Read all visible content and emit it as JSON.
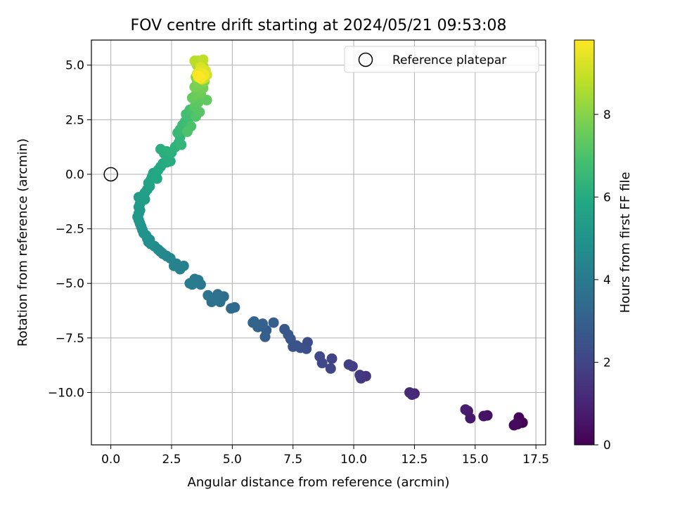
{
  "chart_data": {
    "type": "scatter",
    "title": "FOV centre drift starting at 2024/05/21 09:53:08",
    "xlabel": "Angular distance from reference (arcmin)",
    "ylabel": "Rotation from reference (arcmin)",
    "xlim": [
      -0.8,
      17.9
    ],
    "ylim": [
      -12.4,
      6.15
    ],
    "xticks": [
      0.0,
      2.5,
      5.0,
      7.5,
      10.0,
      12.5,
      15.0,
      17.5
    ],
    "xtick_labels": [
      "0.0",
      "2.5",
      "5.0",
      "7.5",
      "10.0",
      "12.5",
      "15.0",
      "17.5"
    ],
    "yticks": [
      5.0,
      2.5,
      0.0,
      -2.5,
      -5.0,
      -7.5,
      -10.0
    ],
    "ytick_labels": [
      "5.0",
      "2.5",
      "0.0",
      "−2.5",
      "−5.0",
      "−7.5",
      "−10.0"
    ],
    "grid": true,
    "legend": {
      "placement": "upper-right",
      "entries": [
        "Reference platepar"
      ]
    },
    "reference_point": {
      "x": 0.0,
      "y": 0.0
    },
    "colorbar": {
      "label": "Hours from first FF file",
      "range": [
        0,
        9.8
      ],
      "ticks": [
        0,
        2,
        4,
        6,
        8
      ],
      "tick_labels": [
        "0",
        "2",
        "4",
        "6",
        "8"
      ],
      "colormap": "viridis"
    },
    "points": [
      [
        16.95,
        -11.38,
        0.0
      ],
      [
        16.8,
        -11.15,
        0.08
      ],
      [
        16.75,
        -11.45,
        0.15
      ],
      [
        16.6,
        -11.5,
        0.22
      ],
      [
        16.7,
        -11.42,
        0.3
      ],
      [
        15.5,
        -11.05,
        0.45
      ],
      [
        15.35,
        -11.08,
        0.52
      ],
      [
        14.8,
        -11.18,
        0.65
      ],
      [
        14.7,
        -10.85,
        0.72
      ],
      [
        14.6,
        -10.78,
        0.8
      ],
      [
        12.5,
        -10.05,
        1.05
      ],
      [
        12.3,
        -10.0,
        1.12
      ],
      [
        12.4,
        -10.1,
        1.2
      ],
      [
        10.5,
        -9.25,
        1.45
      ],
      [
        10.3,
        -9.35,
        1.52
      ],
      [
        10.25,
        -9.2,
        1.6
      ],
      [
        9.95,
        -8.8,
        1.72
      ],
      [
        9.8,
        -8.72,
        1.8
      ],
      [
        9.1,
        -8.45,
        1.92
      ],
      [
        9.05,
        -8.9,
        2.0
      ],
      [
        8.7,
        -8.65,
        2.1
      ],
      [
        8.6,
        -8.35,
        2.15
      ],
      [
        8.1,
        -7.7,
        2.3
      ],
      [
        8.05,
        -8.0,
        2.35
      ],
      [
        7.8,
        -7.95,
        2.42
      ],
      [
        7.65,
        -7.85,
        2.48
      ],
      [
        7.5,
        -7.9,
        2.55
      ],
      [
        7.4,
        -7.55,
        2.6
      ],
      [
        7.3,
        -7.35,
        2.65
      ],
      [
        7.15,
        -7.1,
        2.7
      ],
      [
        6.7,
        -6.8,
        2.85
      ],
      [
        6.4,
        -7.15,
        2.92
      ],
      [
        6.35,
        -7.45,
        2.96
      ],
      [
        6.25,
        -6.85,
        3.02
      ],
      [
        6.05,
        -7.0,
        3.08
      ],
      [
        5.9,
        -6.75,
        3.14
      ],
      [
        5.85,
        -6.8,
        3.18
      ],
      [
        5.1,
        -6.1,
        3.35
      ],
      [
        4.95,
        -6.15,
        3.4
      ],
      [
        4.65,
        -5.6,
        3.5
      ],
      [
        4.5,
        -5.85,
        3.56
      ],
      [
        4.4,
        -5.5,
        3.6
      ],
      [
        4.3,
        -5.75,
        3.65
      ],
      [
        4.15,
        -5.85,
        3.7
      ],
      [
        4.0,
        -5.55,
        3.75
      ],
      [
        3.7,
        -5.05,
        3.88
      ],
      [
        3.6,
        -4.85,
        3.93
      ],
      [
        3.45,
        -4.8,
        3.98
      ],
      [
        3.35,
        -5.05,
        4.02
      ],
      [
        3.25,
        -5.0,
        4.06
      ],
      [
        3.0,
        -4.2,
        4.18
      ],
      [
        2.85,
        -4.35,
        4.24
      ],
      [
        2.7,
        -4.1,
        4.3
      ],
      [
        2.6,
        -4.2,
        4.34
      ],
      [
        2.45,
        -3.85,
        4.42
      ],
      [
        2.3,
        -3.75,
        4.48
      ],
      [
        2.15,
        -3.65,
        4.54
      ],
      [
        2.05,
        -3.55,
        4.58
      ],
      [
        1.95,
        -3.45,
        4.63
      ],
      [
        1.8,
        -3.3,
        4.68
      ],
      [
        1.65,
        -3.2,
        4.73
      ],
      [
        1.55,
        -3.1,
        4.78
      ],
      [
        1.6,
        -3.0,
        4.82
      ],
      [
        1.5,
        -2.95,
        4.86
      ],
      [
        1.45,
        -2.8,
        4.9
      ],
      [
        1.35,
        -2.7,
        4.94
      ],
      [
        1.3,
        -2.55,
        4.98
      ],
      [
        1.25,
        -2.4,
        5.02
      ],
      [
        1.2,
        -2.25,
        5.06
      ],
      [
        1.15,
        -2.1,
        5.1
      ],
      [
        1.1,
        -1.95,
        5.14
      ],
      [
        1.15,
        -1.8,
        5.18
      ],
      [
        1.2,
        -1.65,
        5.22
      ],
      [
        1.15,
        -1.5,
        5.26
      ],
      [
        1.2,
        -1.35,
        5.3
      ],
      [
        1.25,
        -1.2,
        5.34
      ],
      [
        1.15,
        -1.05,
        5.38
      ],
      [
        1.3,
        -1.0,
        5.42
      ],
      [
        1.4,
        -1.15,
        5.46
      ],
      [
        1.4,
        -0.85,
        5.5
      ],
      [
        1.5,
        -0.7,
        5.54
      ],
      [
        1.6,
        -0.55,
        5.58
      ],
      [
        1.55,
        -0.4,
        5.62
      ],
      [
        1.65,
        -0.25,
        5.66
      ],
      [
        1.7,
        -0.1,
        5.7
      ],
      [
        1.75,
        0.05,
        5.74
      ],
      [
        1.85,
        -0.05,
        5.78
      ],
      [
        1.9,
        -0.2,
        5.82
      ],
      [
        1.95,
        0.2,
        5.86
      ],
      [
        2.05,
        0.35,
        5.9
      ],
      [
        2.15,
        0.5,
        5.94
      ],
      [
        2.3,
        0.55,
        5.98
      ],
      [
        2.45,
        0.6,
        6.02
      ],
      [
        2.35,
        0.7,
        6.06
      ],
      [
        2.2,
        0.95,
        6.1
      ],
      [
        2.05,
        1.15,
        6.14
      ],
      [
        2.3,
        1.05,
        6.18
      ],
      [
        2.5,
        1.0,
        6.22
      ],
      [
        2.65,
        1.25,
        6.26
      ],
      [
        2.8,
        1.45,
        6.3
      ],
      [
        2.85,
        1.7,
        6.38
      ],
      [
        2.9,
        1.35,
        6.44
      ],
      [
        2.75,
        1.9,
        6.5
      ],
      [
        2.85,
        2.05,
        6.56
      ],
      [
        2.95,
        2.25,
        6.62
      ],
      [
        3.05,
        2.4,
        6.68
      ],
      [
        3.2,
        2.55,
        6.74
      ],
      [
        3.1,
        2.75,
        6.8
      ],
      [
        3.25,
        2.95,
        6.86
      ],
      [
        3.4,
        2.9,
        6.92
      ],
      [
        3.3,
        2.2,
        6.98
      ],
      [
        3.15,
        1.95,
        7.04
      ],
      [
        3.5,
        2.65,
        7.1
      ],
      [
        3.65,
        2.85,
        7.16
      ],
      [
        3.45,
        3.1,
        7.22
      ],
      [
        3.6,
        3.3,
        7.28
      ],
      [
        3.75,
        3.45,
        7.34
      ],
      [
        3.95,
        3.4,
        7.4
      ],
      [
        3.35,
        3.5,
        7.46
      ],
      [
        3.5,
        3.65,
        7.52
      ],
      [
        3.7,
        3.7,
        7.58
      ],
      [
        3.6,
        3.85,
        7.64
      ],
      [
        3.8,
        3.95,
        7.7
      ],
      [
        3.45,
        4.0,
        7.76
      ],
      [
        3.65,
        4.15,
        7.82
      ],
      [
        3.55,
        4.3,
        7.88
      ],
      [
        3.75,
        4.4,
        7.94
      ],
      [
        3.85,
        4.25,
        8.0
      ],
      [
        3.5,
        4.45,
        8.06
      ],
      [
        3.6,
        4.55,
        8.12
      ],
      [
        3.8,
        4.6,
        8.18
      ],
      [
        3.7,
        4.7,
        8.24
      ],
      [
        3.9,
        4.5,
        8.3
      ],
      [
        3.65,
        4.85,
        8.36
      ],
      [
        3.8,
        4.95,
        8.42
      ],
      [
        3.55,
        5.0,
        8.48
      ],
      [
        3.75,
        5.05,
        8.54
      ],
      [
        3.85,
        4.8,
        8.6
      ],
      [
        3.9,
        4.65,
        8.66
      ],
      [
        3.6,
        5.2,
        8.72
      ],
      [
        3.45,
        5.2,
        8.78
      ],
      [
        3.8,
        5.25,
        8.84
      ],
      [
        3.7,
        4.6,
        8.9
      ],
      [
        3.85,
        4.4,
        8.96
      ],
      [
        3.95,
        4.55,
        9.02
      ],
      [
        3.75,
        4.35,
        9.08
      ],
      [
        3.6,
        4.45,
        9.14
      ],
      [
        3.9,
        4.75,
        9.2
      ],
      [
        3.7,
        4.9,
        9.26
      ],
      [
        3.8,
        4.5,
        9.32
      ],
      [
        3.65,
        4.7,
        9.38
      ],
      [
        3.55,
        4.6,
        9.44
      ],
      [
        3.75,
        4.65,
        9.5
      ],
      [
        3.85,
        4.55,
        9.6
      ],
      [
        3.7,
        4.4,
        9.7
      ],
      [
        3.6,
        4.5,
        9.8
      ]
    ]
  }
}
